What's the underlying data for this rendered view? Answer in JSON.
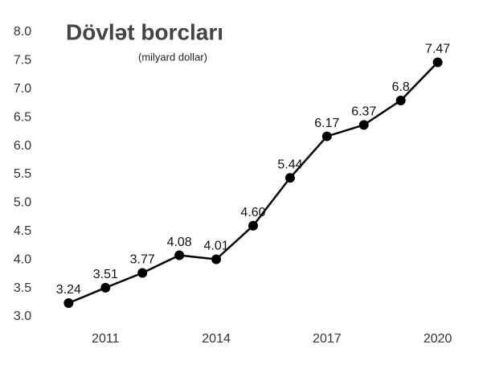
{
  "chart_data": {
    "type": "line",
    "title": "Dövlət borcları",
    "subtitle": "(milyard dollar)",
    "x": [
      2010,
      2011,
      2012,
      2013,
      2014,
      2015,
      2016,
      2017,
      2018,
      2019,
      2020
    ],
    "series": [
      {
        "color": "#000000",
        "values": [
          3.24,
          3.51,
          3.77,
          4.08,
          4.01,
          4.6,
          5.44,
          6.17,
          6.37,
          6.8,
          7.47
        ],
        "value_labels": [
          "3.24",
          "3.51",
          "3.77",
          "4.08",
          "4.01",
          "4.60",
          "5.44",
          "6.17",
          "6.37",
          "6.8",
          "7.47"
        ]
      }
    ],
    "xlim": [
      2009.6,
      2020.4
    ],
    "xticks": [
      2011,
      2014,
      2017,
      2020
    ],
    "ylim": [
      3.0,
      8.0
    ],
    "yticks": [
      {
        "value": 3.0,
        "label": "3.0"
      },
      {
        "value": 3.5,
        "label": "3.5"
      },
      {
        "value": 4.0,
        "label": "4.0"
      },
      {
        "value": 4.5,
        "label": "4.5"
      },
      {
        "value": 5.0,
        "label": "5.0"
      },
      {
        "value": 5.5,
        "label": "5.5"
      },
      {
        "value": 6.0,
        "label": "6.0"
      },
      {
        "value": 6.5,
        "label": "6.5"
      },
      {
        "value": 7.0,
        "label": "7.0"
      },
      {
        "value": 7.5,
        "label": "7.5"
      },
      {
        "value": 8.0,
        "label": "8.0"
      }
    ],
    "grid": false
  }
}
